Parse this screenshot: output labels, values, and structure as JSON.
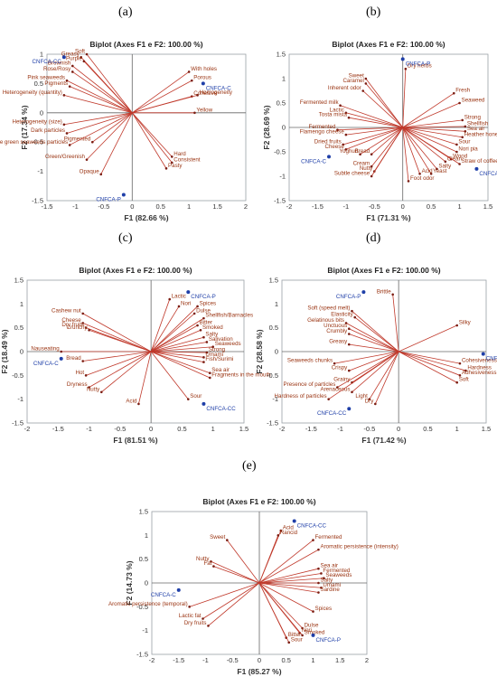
{
  "panels": [
    {
      "id": "a",
      "letter": "(a)",
      "title": "Biplot (Axes F1 e F2: 100.00 %)",
      "xlabel": "F1 (82.66 %)",
      "ylabel": "F2 (17.34 %)",
      "xticks": [
        "-1.5",
        "-1",
        "-0.5",
        "0",
        "0.5",
        "1",
        "1.5",
        "2"
      ],
      "yticks": [
        "1",
        "0.5",
        "0",
        "-0.5",
        "-1",
        "-1.5"
      ],
      "xlim": [
        -1.5,
        2
      ],
      "ylim": [
        -1.5,
        1
      ],
      "variables": [
        {
          "label": "Soft",
          "x": -0.8,
          "y": 1.0
        },
        {
          "label": "Greasy",
          "x": -0.9,
          "y": 0.95
        },
        {
          "label": "Purple",
          "x": -0.85,
          "y": 0.88
        },
        {
          "label": "Brownish",
          "x": -1.05,
          "y": 0.8
        },
        {
          "label": "Rose/Rosy",
          "x": -1.05,
          "y": 0.7
        },
        {
          "label": "Pink seaweeds",
          "x": -1.15,
          "y": 0.55
        },
        {
          "label": "Pigments",
          "x": -1.1,
          "y": 0.45
        },
        {
          "label": "Heterogeneity (quantity)",
          "x": -1.2,
          "y": 0.3
        },
        {
          "label": "Heterogeneity (size)",
          "x": -1.2,
          "y": -0.2
        },
        {
          "label": "Dark particles",
          "x": -1.15,
          "y": -0.35
        },
        {
          "label": "Pigmented",
          "x": -0.7,
          "y": -0.5
        },
        {
          "label": "White green seaweeds particles",
          "x": -1.1,
          "y": -0.55
        },
        {
          "label": "Green/Greenish",
          "x": -0.8,
          "y": -0.8
        },
        {
          "label": "Opaque",
          "x": -0.55,
          "y": -1.05
        },
        {
          "label": "With holes",
          "x": 1.0,
          "y": 0.7
        },
        {
          "label": "Porous",
          "x": 1.05,
          "y": 0.55
        },
        {
          "label": "Cohesive",
          "x": 1.05,
          "y": 0.28
        },
        {
          "label": "Homogeneity",
          "x": 1.15,
          "y": 0.3
        },
        {
          "label": "Yellow",
          "x": 1.1,
          "y": 0.0
        },
        {
          "label": "Hard",
          "x": 0.7,
          "y": -0.75
        },
        {
          "label": "Consistent",
          "x": 0.7,
          "y": -0.85
        },
        {
          "label": "Pasty",
          "x": 0.6,
          "y": -0.95
        }
      ],
      "observations": [
        {
          "label": "CNFCA-CC",
          "x": -1.2,
          "y": 0.95
        },
        {
          "label": "CNFCA-C",
          "x": 1.25,
          "y": 0.5
        },
        {
          "label": "CNFCA-P",
          "x": -0.15,
          "y": -1.4
        }
      ]
    },
    {
      "id": "b",
      "letter": "(b)",
      "title": "Biplot (Axes F1 e F2: 100.00 %)",
      "xlabel": "F1 (71.31 %)",
      "ylabel": "F2 (28.69 %)",
      "xticks": [
        "-2",
        "-1.5",
        "-1",
        "-0.5",
        "0",
        "0.5",
        "1",
        "1.5"
      ],
      "yticks": [
        "1.5",
        "1",
        "0.5",
        "0",
        "-0.5",
        "-1",
        "-1.5"
      ],
      "xlim": [
        -2,
        1.5
      ],
      "ylim": [
        -1.5,
        1.5
      ],
      "variables": [
        {
          "label": "Sweet",
          "x": -0.65,
          "y": 1.0
        },
        {
          "label": "Caramel",
          "x": -0.65,
          "y": 0.9
        },
        {
          "label": "Inherent odor",
          "x": -0.7,
          "y": 0.75
        },
        {
          "label": "Dry herbs",
          "x": 0.05,
          "y": 1.2
        },
        {
          "label": "Fermented milk",
          "x": -1.1,
          "y": 0.45
        },
        {
          "label": "Lactic",
          "x": -1.0,
          "y": 0.3
        },
        {
          "label": "Tosta mista",
          "x": -0.95,
          "y": 0.2
        },
        {
          "label": "Fermented",
          "x": -1.15,
          "y": -0.05
        },
        {
          "label": "Flamengo cheese",
          "x": -1.0,
          "y": -0.15
        },
        {
          "label": "Dried fruits",
          "x": -1.05,
          "y": -0.35
        },
        {
          "label": "Cheese",
          "x": -1.0,
          "y": -0.45
        },
        {
          "label": "Yoghurt",
          "x": -0.75,
          "y": -0.55
        },
        {
          "label": "Bread",
          "x": -0.55,
          "y": -0.55
        },
        {
          "label": "Cream",
          "x": -0.55,
          "y": -0.8
        },
        {
          "label": "Nutty",
          "x": -0.5,
          "y": -0.9
        },
        {
          "label": "Subtle cheese",
          "x": -0.55,
          "y": -1.0
        },
        {
          "label": "Fresh",
          "x": 0.9,
          "y": 0.7
        },
        {
          "label": "Seaweed",
          "x": 1.0,
          "y": 0.5
        },
        {
          "label": "Strong",
          "x": 1.05,
          "y": 0.15
        },
        {
          "label": "Shellfish",
          "x": 1.1,
          "y": 0.02
        },
        {
          "label": "Sea air",
          "x": 1.1,
          "y": -0.08
        },
        {
          "label": "Heather honey",
          "x": 1.05,
          "y": -0.2
        },
        {
          "label": "Sour",
          "x": 0.95,
          "y": -0.35
        },
        {
          "label": "Nori pia",
          "x": 0.95,
          "y": -0.5
        },
        {
          "label": "Wood",
          "x": 0.85,
          "y": -0.65
        },
        {
          "label": "Clean",
          "x": 0.75,
          "y": -0.7
        },
        {
          "label": "Straw of coffee",
          "x": 1.0,
          "y": -0.75
        },
        {
          "label": "Salty",
          "x": 0.6,
          "y": -0.85
        },
        {
          "label": "Yeast",
          "x": 0.5,
          "y": -0.95
        },
        {
          "label": "Acid",
          "x": 0.3,
          "y": -0.95
        },
        {
          "label": "Foot odor",
          "x": 0.1,
          "y": -1.1
        }
      ],
      "observations": [
        {
          "label": "CNFCA-P",
          "x": 0.0,
          "y": 1.4
        },
        {
          "label": "CNFCA-C",
          "x": -1.3,
          "y": -0.6
        },
        {
          "label": "CNFCA-CC",
          "x": 1.3,
          "y": -0.85
        }
      ]
    },
    {
      "id": "c",
      "letter": "(c)",
      "title": "Biplot (Axes F1 e F2: 100.00 %)",
      "xlabel": "F1 (81.51 %)",
      "ylabel": "F2 (18.49 %)",
      "xticks": [
        "-2",
        "-1.5",
        "-1",
        "-0.5",
        "0",
        "0.5",
        "1",
        "1.5"
      ],
      "yticks": [
        "1.5",
        "1",
        "0.5",
        "0",
        "-0.5",
        "-1",
        "-1.5"
      ],
      "xlim": [
        -2,
        1.5
      ],
      "ylim": [
        -1.5,
        1.5
      ],
      "variables": [
        {
          "label": "Lactic",
          "x": 0.3,
          "y": 1.1
        },
        {
          "label": "Nori",
          "x": 0.45,
          "y": 0.95
        },
        {
          "label": "Spices",
          "x": 0.75,
          "y": 0.95
        },
        {
          "label": "Dulse",
          "x": 0.7,
          "y": 0.8
        },
        {
          "label": "Shellfish/Barnacles",
          "x": 0.85,
          "y": 0.7
        },
        {
          "label": "Bitter",
          "x": 0.75,
          "y": 0.55
        },
        {
          "label": "Smoked",
          "x": 0.8,
          "y": 0.45
        },
        {
          "label": "Salty",
          "x": 0.85,
          "y": 0.3
        },
        {
          "label": "Salivation",
          "x": 0.9,
          "y": 0.2
        },
        {
          "label": "Seaweeds",
          "x": 1.0,
          "y": 0.1
        },
        {
          "label": "Strong",
          "x": 0.9,
          "y": -0.02
        },
        {
          "label": "Umami",
          "x": 0.85,
          "y": -0.12
        },
        {
          "label": "Fish/Surimi",
          "x": 0.85,
          "y": -0.22
        },
        {
          "label": "Sea air",
          "x": 0.95,
          "y": -0.45
        },
        {
          "label": "Fragments in the mouth",
          "x": 0.95,
          "y": -0.55
        },
        {
          "label": "Cashew nut",
          "x": -1.1,
          "y": 0.8
        },
        {
          "label": "Cheese",
          "x": -1.1,
          "y": 0.6
        },
        {
          "label": "Dry fruits",
          "x": -1.05,
          "y": 0.5
        },
        {
          "label": "Crunchy",
          "x": -1.0,
          "y": 0.45
        },
        {
          "label": "Nauseating",
          "x": -1.45,
          "y": 0.0
        },
        {
          "label": "Bread",
          "x": -1.1,
          "y": -0.2
        },
        {
          "label": "Hot",
          "x": -1.05,
          "y": -0.5
        },
        {
          "label": "Dryness",
          "x": -1.0,
          "y": -0.75
        },
        {
          "label": "Nutty",
          "x": -0.8,
          "y": -0.85
        },
        {
          "label": "Acid",
          "x": -0.2,
          "y": -1.1
        },
        {
          "label": "Sour",
          "x": 0.6,
          "y": -1.0
        }
      ],
      "observations": [
        {
          "label": "CNFCA-P",
          "x": 0.6,
          "y": 1.25
        },
        {
          "label": "CNFCA-C",
          "x": -1.45,
          "y": -0.15
        },
        {
          "label": "CNFCA-CC",
          "x": 0.85,
          "y": -1.1
        }
      ]
    },
    {
      "id": "d",
      "letter": "(d)",
      "title": "Biplot (Axes F1 e F2: 100.00 %)",
      "xlabel": "F1 (71.42 %)",
      "ylabel": "F2 (28.58 %)",
      "xticks": [
        "-2",
        "-1.5",
        "-1",
        "-0.5",
        "0",
        "0.5",
        "1",
        "1.5"
      ],
      "yticks": [
        "1.5",
        "1",
        "0.5",
        "0",
        "-0.5",
        "-1",
        "-1.5"
      ],
      "xlim": [
        -2,
        1.5
      ],
      "ylim": [
        -1.5,
        1.5
      ],
      "variables": [
        {
          "label": "Brittle",
          "x": -0.1,
          "y": 1.2
        },
        {
          "label": "Soft (speed melt)",
          "x": -0.8,
          "y": 0.85
        },
        {
          "label": "Elasticity",
          "x": -0.75,
          "y": 0.72
        },
        {
          "label": "Gelatinous bits",
          "x": -0.9,
          "y": 0.6
        },
        {
          "label": "Unctuous",
          "x": -0.85,
          "y": 0.48
        },
        {
          "label": "Crumbly",
          "x": -0.85,
          "y": 0.37
        },
        {
          "label": "Greasy",
          "x": -0.85,
          "y": 0.15
        },
        {
          "label": "Seaweeds chunks",
          "x": -1.1,
          "y": -0.25
        },
        {
          "label": "Crispy",
          "x": -0.85,
          "y": -0.4
        },
        {
          "label": "Grainy",
          "x": -0.8,
          "y": -0.65
        },
        {
          "label": "Presence of particles",
          "x": -1.05,
          "y": -0.75
        },
        {
          "label": "Arenaceous",
          "x": -0.8,
          "y": -0.85
        },
        {
          "label": "Hardness of particles",
          "x": -1.2,
          "y": -1.0
        },
        {
          "label": "Light",
          "x": -0.5,
          "y": -1.0
        },
        {
          "label": "Dry",
          "x": -0.4,
          "y": -1.1
        },
        {
          "label": "Silky",
          "x": 1.0,
          "y": 0.55
        },
        {
          "label": "Cohesiveness",
          "x": 1.05,
          "y": -0.25
        },
        {
          "label": "Hardness",
          "x": 1.15,
          "y": -0.4
        },
        {
          "label": "Adhesiveness",
          "x": 1.05,
          "y": -0.5
        },
        {
          "label": "Soft",
          "x": 1.0,
          "y": -0.65
        }
      ],
      "observations": [
        {
          "label": "CNFCA-P",
          "x": -0.6,
          "y": 1.25
        },
        {
          "label": "CNFCA-C",
          "x": 1.45,
          "y": -0.05
        },
        {
          "label": "CNFCA-CC",
          "x": -0.85,
          "y": -1.2
        }
      ]
    },
    {
      "id": "e",
      "letter": "(e)",
      "title": "Biplot (Axes F1 e F2: 100.00 %)",
      "xlabel": "F1 (85.27 %)",
      "ylabel": "F2 (14.73 %)",
      "xticks": [
        "-2",
        "-1.5",
        "-1",
        "-0.5",
        "0",
        "0.5",
        "1",
        "1.5",
        "2"
      ],
      "yticks": [
        "1.5",
        "1",
        "0.5",
        "0",
        "-0.5",
        "-1",
        "-1.5"
      ],
      "xlim": [
        -2,
        2
      ],
      "ylim": [
        -1.5,
        1.5
      ],
      "variables": [
        {
          "label": "Acid",
          "x": 0.4,
          "y": 1.1
        },
        {
          "label": "Rancid",
          "x": 0.35,
          "y": 1.0
        },
        {
          "label": "Sweet",
          "x": -0.6,
          "y": 0.9
        },
        {
          "label": "Nutty",
          "x": -0.9,
          "y": 0.45
        },
        {
          "label": "Fat",
          "x": -0.85,
          "y": 0.35
        },
        {
          "label": "Fermented",
          "x": 1.0,
          "y": 0.9
        },
        {
          "label": "Aromatic persistence (intensity)",
          "x": 1.1,
          "y": 0.7
        },
        {
          "label": "Sea air",
          "x": 1.1,
          "y": 0.3
        },
        {
          "label": "Fermented",
          "x": 1.15,
          "y": 0.2
        },
        {
          "label": "Seaweeds",
          "x": 1.2,
          "y": 0.1
        },
        {
          "label": "Salty",
          "x": 1.1,
          "y": 0.0
        },
        {
          "label": "Umami",
          "x": 1.15,
          "y": -0.1
        },
        {
          "label": "Sardine",
          "x": 1.1,
          "y": -0.2
        },
        {
          "label": "Spices",
          "x": 1.0,
          "y": -0.6
        },
        {
          "label": "Aromatic persistence (temporal)",
          "x": -1.3,
          "y": -0.5
        },
        {
          "label": "Lactic fat",
          "x": -1.05,
          "y": -0.75
        },
        {
          "label": "Dry fruits",
          "x": -0.95,
          "y": -0.9
        },
        {
          "label": "Dulse",
          "x": 0.8,
          "y": -0.95
        },
        {
          "label": "Nori",
          "x": 0.75,
          "y": -1.05
        },
        {
          "label": "Smoked",
          "x": 0.8,
          "y": -1.1
        },
        {
          "label": "Bitter",
          "x": 0.5,
          "y": -1.15
        },
        {
          "label": "Sour",
          "x": 0.55,
          "y": -1.25
        }
      ],
      "observations": [
        {
          "label": "CNFCA-CC",
          "x": 0.65,
          "y": 1.3
        },
        {
          "label": "CNFCA-C",
          "x": -1.5,
          "y": -0.15
        },
        {
          "label": "CNFCA-P",
          "x": 1.0,
          "y": -1.1
        }
      ]
    }
  ]
}
